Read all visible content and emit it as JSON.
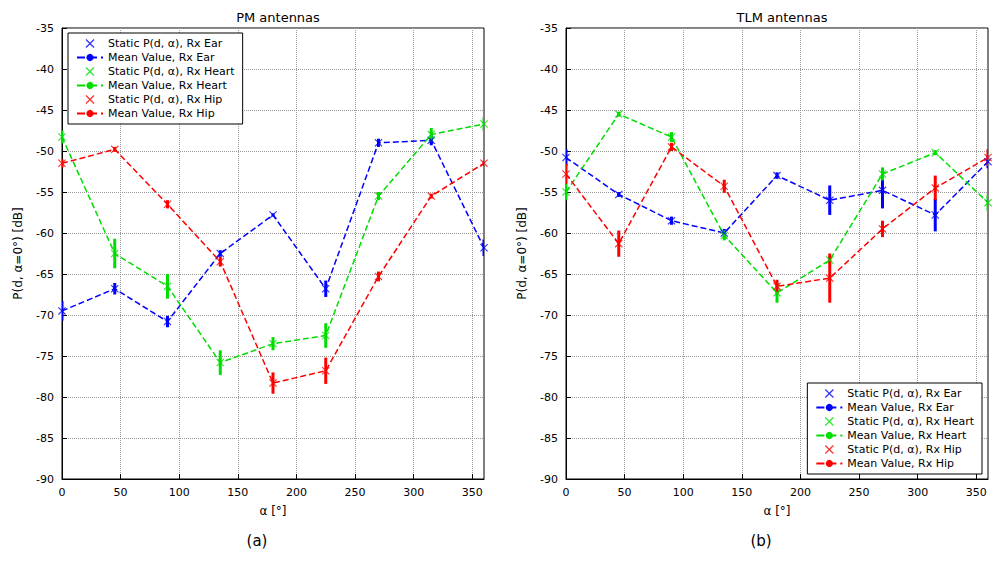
{
  "chart_data": [
    {
      "type": "line",
      "title": "PM antennas",
      "caption": "(a)",
      "xlabel": "α [°]",
      "ylabel": "P(d, α=0°) [dB]",
      "x": [
        0,
        45,
        90,
        135,
        180,
        225,
        270,
        315,
        360
      ],
      "xlim": [
        0,
        360
      ],
      "xticks": [
        0,
        50,
        100,
        150,
        200,
        250,
        300,
        350
      ],
      "ylim": [
        -90,
        -35
      ],
      "yticks": [
        -90,
        -85,
        -80,
        -75,
        -70,
        -65,
        -60,
        -55,
        -50,
        -45,
        -40,
        -35
      ],
      "grid": true,
      "legend": "upper left",
      "series": [
        {
          "name": "Static P(d, α), Rx Ear",
          "type": "scatter",
          "marker": "x",
          "color": "#0000ff",
          "values": [
            -69.5,
            -66.8,
            -70.8,
            -62.5,
            -57.8,
            -66.8,
            -49,
            -48.7,
            -61.8
          ],
          "error": [
            1.2,
            0.7,
            0.7,
            0.4,
            0.2,
            1.0,
            0.5,
            0.6,
            1.0
          ]
        },
        {
          "name": "Mean Value, Rx Ear",
          "type": "line",
          "line_style": "dashed",
          "color": "#0000ff",
          "values": [
            -69.5,
            -66.8,
            -70.8,
            -62.5,
            -57.8,
            -66.8,
            -49,
            -48.7,
            -61.8
          ]
        },
        {
          "name": "Static P(d, α), Rx Heart",
          "type": "scatter",
          "marker": "x",
          "color": "#00dd00",
          "values": [
            -48.3,
            -62.5,
            -66.5,
            -75.8,
            -73.5,
            -72.5,
            -55.5,
            -48,
            -46.7
          ],
          "error": [
            0.8,
            1.8,
            1.5,
            1.5,
            0.8,
            1.5,
            0.5,
            0.8,
            0.8
          ]
        },
        {
          "name": "Mean Value, Rx Heart",
          "type": "line",
          "line_style": "dashed",
          "color": "#00dd00",
          "values": [
            -48.3,
            -62.5,
            -66.5,
            -75.8,
            -73.5,
            -72.5,
            -55.5,
            -48,
            -46.7
          ]
        },
        {
          "name": "Static P(d, α), Rx Hip",
          "type": "scatter",
          "marker": "x",
          "color": "#ff0000",
          "values": [
            -51.5,
            -49.8,
            -56.5,
            -63.5,
            -78.3,
            -76.8,
            -65.3,
            -55.5,
            -51.5
          ],
          "error": [
            0.5,
            0.3,
            0.5,
            0.6,
            1.3,
            1.6,
            0.6,
            0.3,
            0.3
          ]
        },
        {
          "name": "Mean Value, Rx Hip",
          "type": "line",
          "line_style": "dashed",
          "color": "#ff0000",
          "values": [
            -51.5,
            -49.8,
            -56.5,
            -63.5,
            -78.3,
            -76.8,
            -65.3,
            -55.5,
            -51.5
          ]
        }
      ]
    },
    {
      "type": "line",
      "title": "TLM antennas",
      "caption": "(b)",
      "xlabel": "α [°]",
      "ylabel": "P(d, α=0°) [dB]",
      "x": [
        0,
        45,
        90,
        135,
        180,
        225,
        270,
        315,
        360
      ],
      "xlim": [
        0,
        360
      ],
      "xticks": [
        0,
        50,
        100,
        150,
        200,
        250,
        300,
        350
      ],
      "ylim": [
        -90,
        -35
      ],
      "yticks": [
        -90,
        -85,
        -80,
        -75,
        -70,
        -65,
        -60,
        -55,
        -50,
        -45,
        -40,
        -35
      ],
      "grid": true,
      "legend": "lower right",
      "series": [
        {
          "name": "Static P(d, α), Rx Ear",
          "type": "scatter",
          "marker": "x",
          "color": "#0000ff",
          "values": [
            -50.8,
            -55.3,
            -58.5,
            -60,
            -53,
            -56,
            -54.8,
            -57.8,
            -51.3
          ],
          "error": [
            1.0,
            0.3,
            0.5,
            0.5,
            0.4,
            1.8,
            2.2,
            2.0,
            0.8
          ]
        },
        {
          "name": "Mean Value, Rx Ear",
          "type": "line",
          "line_style": "dashed",
          "color": "#0000ff",
          "values": [
            -50.8,
            -55.3,
            -58.5,
            -60,
            -53,
            -56,
            -54.8,
            -57.8,
            -51.3
          ]
        },
        {
          "name": "Static P(d, α), Rx Heart",
          "type": "scatter",
          "marker": "x",
          "color": "#00dd00",
          "values": [
            -55,
            -45.5,
            -48.3,
            -60.3,
            -67.3,
            -63.3,
            -52.8,
            -50.2,
            -56.3
          ],
          "error": [
            1.0,
            0.3,
            0.6,
            0.6,
            1.2,
            0.5,
            0.8,
            0.3,
            1.0
          ]
        },
        {
          "name": "Mean Value, Rx Heart",
          "type": "line",
          "line_style": "dashed",
          "color": "#00dd00",
          "values": [
            -55,
            -45.5,
            -48.3,
            -60.3,
            -67.3,
            -63.3,
            -52.8,
            -50.2,
            -56.3
          ]
        },
        {
          "name": "Static P(d, α), Rx Hip",
          "type": "scatter",
          "marker": "x",
          "color": "#ff0000",
          "values": [
            -52.8,
            -61.3,
            -49.5,
            -54.3,
            -66.5,
            -65.5,
            -59.5,
            -54.5,
            -50.8
          ],
          "error": [
            1.2,
            1.6,
            0.5,
            0.8,
            0.8,
            3.0,
            1.0,
            1.5,
            1.0
          ]
        },
        {
          "name": "Mean Value, Rx Hip",
          "type": "line",
          "line_style": "dashed",
          "color": "#ff0000",
          "values": [
            -52.8,
            -61.3,
            -49.5,
            -54.3,
            -66.5,
            -65.5,
            -59.5,
            -54.5,
            -50.8
          ]
        }
      ]
    }
  ]
}
